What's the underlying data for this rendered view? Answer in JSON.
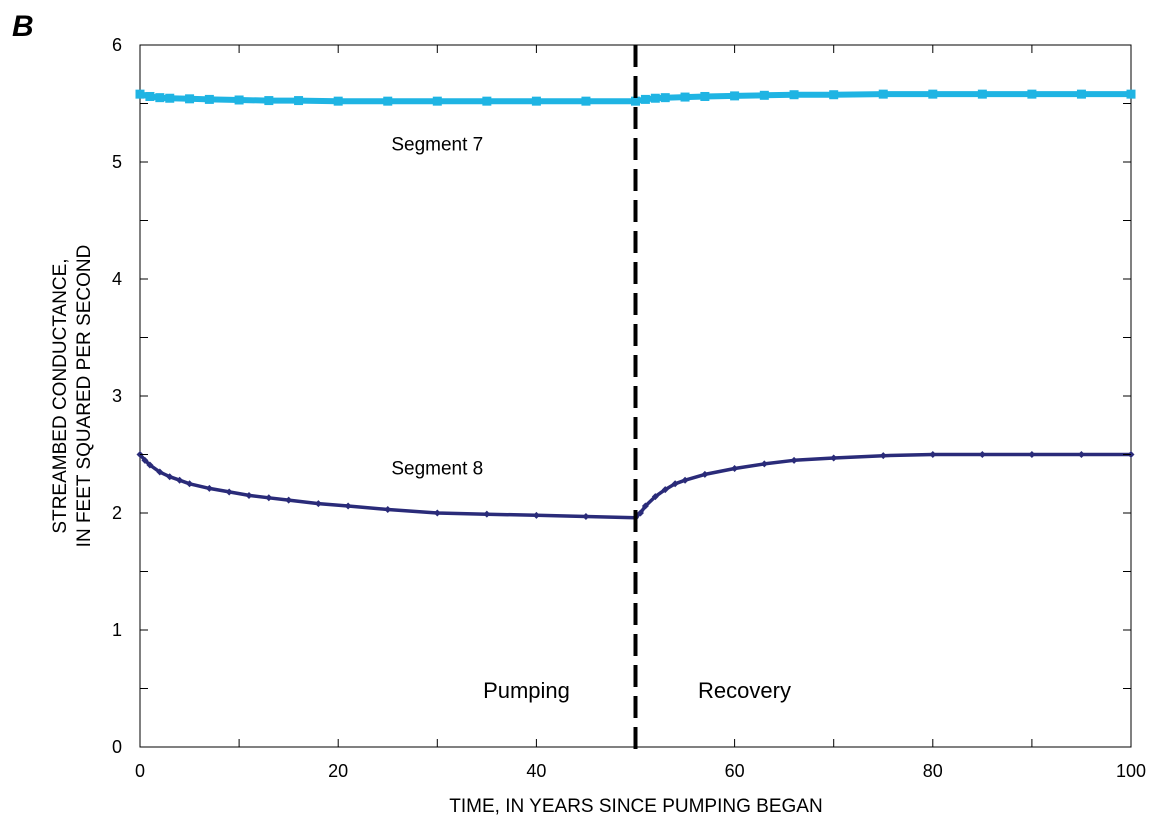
{
  "chart_data": {
    "type": "line",
    "panel_label": "B",
    "title": "",
    "xlabel": "TIME, IN YEARS SINCE PUMPING BEGAN",
    "ylabel_lines": [
      "STREAMBED CONDUCTANCE,",
      "IN FEET SQUARED PER SECOND"
    ],
    "xlim": [
      0,
      100
    ],
    "ylim": [
      0,
      6
    ],
    "x_ticks": [
      0,
      20,
      40,
      60,
      80,
      100
    ],
    "y_ticks": [
      0,
      1,
      2,
      3,
      4,
      5,
      6
    ],
    "grid": false,
    "divider_x": 50,
    "annotations": [
      {
        "text": "Segment 7",
        "x": 30,
        "y": 5.1,
        "style": "annot"
      },
      {
        "text": "Segment 8",
        "x": 30,
        "y": 2.33,
        "style": "annot"
      },
      {
        "text": "Pumping",
        "x": 39,
        "y": 0.42,
        "style": "annot-big"
      },
      {
        "text": "Recovery",
        "x": 61,
        "y": 0.42,
        "style": "annot-big"
      }
    ],
    "series": [
      {
        "name": "Segment 7",
        "color": "#1fb4e3",
        "marker": "square",
        "x": [
          0,
          1,
          2,
          3,
          5,
          7,
          10,
          13,
          16,
          20,
          25,
          30,
          35,
          40,
          45,
          50,
          51,
          52,
          53,
          55,
          57,
          60,
          63,
          66,
          70,
          75,
          80,
          85,
          90,
          95,
          100
        ],
        "y": [
          5.58,
          5.56,
          5.55,
          5.545,
          5.54,
          5.535,
          5.53,
          5.525,
          5.525,
          5.52,
          5.52,
          5.52,
          5.52,
          5.52,
          5.52,
          5.52,
          5.535,
          5.545,
          5.55,
          5.555,
          5.56,
          5.565,
          5.57,
          5.575,
          5.575,
          5.58,
          5.58,
          5.58,
          5.58,
          5.58,
          5.58
        ]
      },
      {
        "name": "Segment 8",
        "color": "#2a2b79",
        "marker": "diamond",
        "x": [
          0,
          0.5,
          1,
          2,
          3,
          4,
          5,
          7,
          9,
          11,
          13,
          15,
          18,
          21,
          25,
          30,
          35,
          40,
          45,
          50,
          50.5,
          51,
          52,
          53,
          54,
          55,
          57,
          60,
          63,
          66,
          70,
          75,
          80,
          85,
          90,
          95,
          100
        ],
        "y": [
          2.5,
          2.45,
          2.41,
          2.35,
          2.31,
          2.28,
          2.25,
          2.21,
          2.18,
          2.15,
          2.13,
          2.11,
          2.08,
          2.06,
          2.03,
          2.0,
          1.99,
          1.98,
          1.97,
          1.96,
          2.0,
          2.06,
          2.14,
          2.2,
          2.25,
          2.28,
          2.33,
          2.38,
          2.42,
          2.45,
          2.47,
          2.49,
          2.5,
          2.5,
          2.5,
          2.5,
          2.5
        ]
      }
    ]
  }
}
